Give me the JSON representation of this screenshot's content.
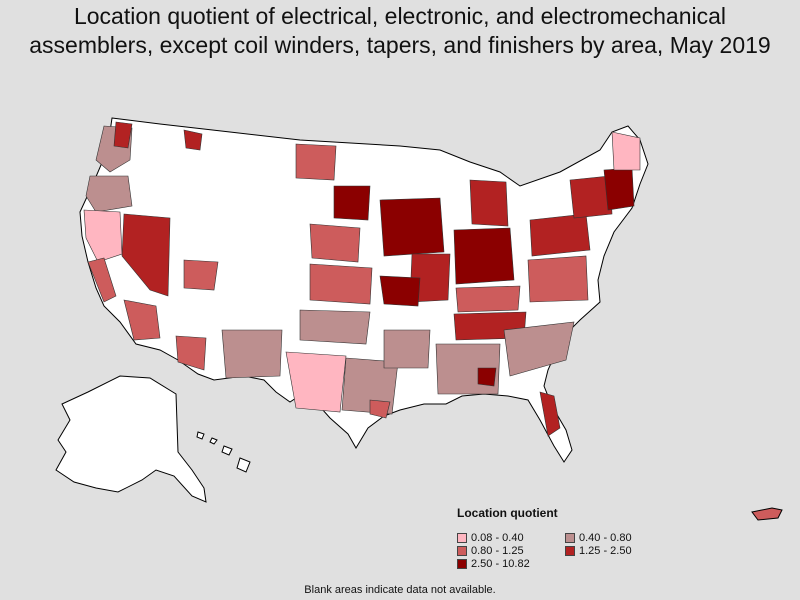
{
  "title_line1": "Location quotient of electrical, electronic, and electromechanical",
  "title_line2": "assemblers, except coil winders, tapers, and finishers by area, May 2019",
  "legend": {
    "title": "Location quotient",
    "items": [
      {
        "label": "0.08 - 0.40",
        "color": "#ffb6c1"
      },
      {
        "label": "0.40 - 0.80",
        "color": "#bc8f8f"
      },
      {
        "label": "0.80 - 1.25",
        "color": "#cd5c5c"
      },
      {
        "label": "1.25 - 2.50",
        "color": "#b22222"
      },
      {
        "label": "2.50 - 10.82",
        "color": "#8b0000"
      }
    ]
  },
  "note": "Blank areas indicate data not available.",
  "colors": {
    "background": "#e0e0e0",
    "no_data": "#ffffff",
    "border": "#000000"
  }
}
